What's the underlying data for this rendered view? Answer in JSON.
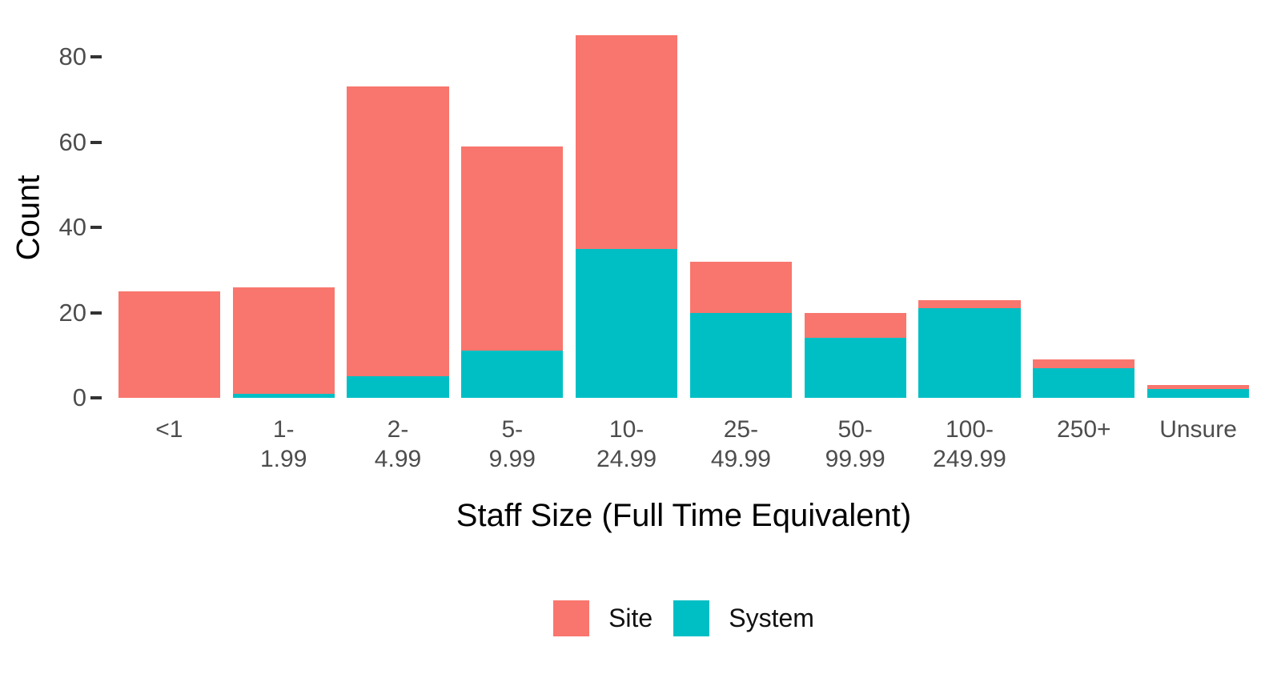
{
  "chart_data": {
    "type": "bar",
    "stacked": true,
    "orientation": "vertical",
    "xlabel": "Staff Size (Full Time Equivalent)",
    "ylabel": "Count",
    "categories": [
      "<1",
      "1-1.99",
      "2-4.99",
      "5-9.99",
      "10-24.99",
      "25-49.99",
      "50-99.99",
      "100-249.99",
      "250+",
      "Unsure"
    ],
    "category_label_lines": [
      [
        "<1"
      ],
      [
        "1-",
        "1.99"
      ],
      [
        "2-",
        "4.99"
      ],
      [
        "5-",
        "9.99"
      ],
      [
        "10-",
        "24.99"
      ],
      [
        "25-",
        "49.99"
      ],
      [
        "50-",
        "99.99"
      ],
      [
        "100-",
        "249.99"
      ],
      [
        "250+"
      ],
      [
        "Unsure"
      ]
    ],
    "series": [
      {
        "name": "Site",
        "color": "#F8766D",
        "values": [
          25,
          25,
          68,
          48,
          50,
          12,
          6,
          2,
          2,
          1
        ]
      },
      {
        "name": "System",
        "color": "#00BFC4",
        "values": [
          0,
          1,
          5,
          11,
          35,
          20,
          14,
          21,
          7,
          2
        ]
      }
    ],
    "stack_order_bottom_to_top": [
      "System",
      "Site"
    ],
    "stack_totals": [
      25,
      26,
      73,
      59,
      85,
      32,
      20,
      23,
      9,
      3
    ],
    "yticks": [
      0,
      20,
      40,
      60,
      80
    ],
    "ylim": [
      0,
      85
    ],
    "grid": "off",
    "axis_lines": "off",
    "legend_position": "bottom"
  },
  "style": {
    "tick_mark_color": "#333333",
    "tick_label_color": "#4D4D4D",
    "axis_title_color": "#000000",
    "background_color": "#FFFFFF"
  }
}
